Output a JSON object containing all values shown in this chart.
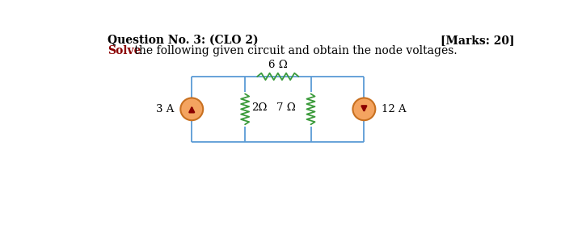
{
  "title_left": "Question No. 3: (CLO 2)",
  "title_right": "[Marks: 20]",
  "subtitle_bold": "Solve",
  "subtitle_rest": " the following given circuit and obtain the node voltages.",
  "bg_color": "#ffffff",
  "circuit_color": "#5b9bd5",
  "resistor_color": "#3a9a3a",
  "source_fill": "#f4a460",
  "source_edge": "#c87020",
  "arrow_color": "#8b0000",
  "label_3A": "3 A",
  "label_12A": "12 A",
  "label_2ohm": "2Ω",
  "label_6ohm": "6 Ω",
  "label_7ohm": "7 Ω",
  "font_size_title": 10,
  "font_size_circuit": 10
}
